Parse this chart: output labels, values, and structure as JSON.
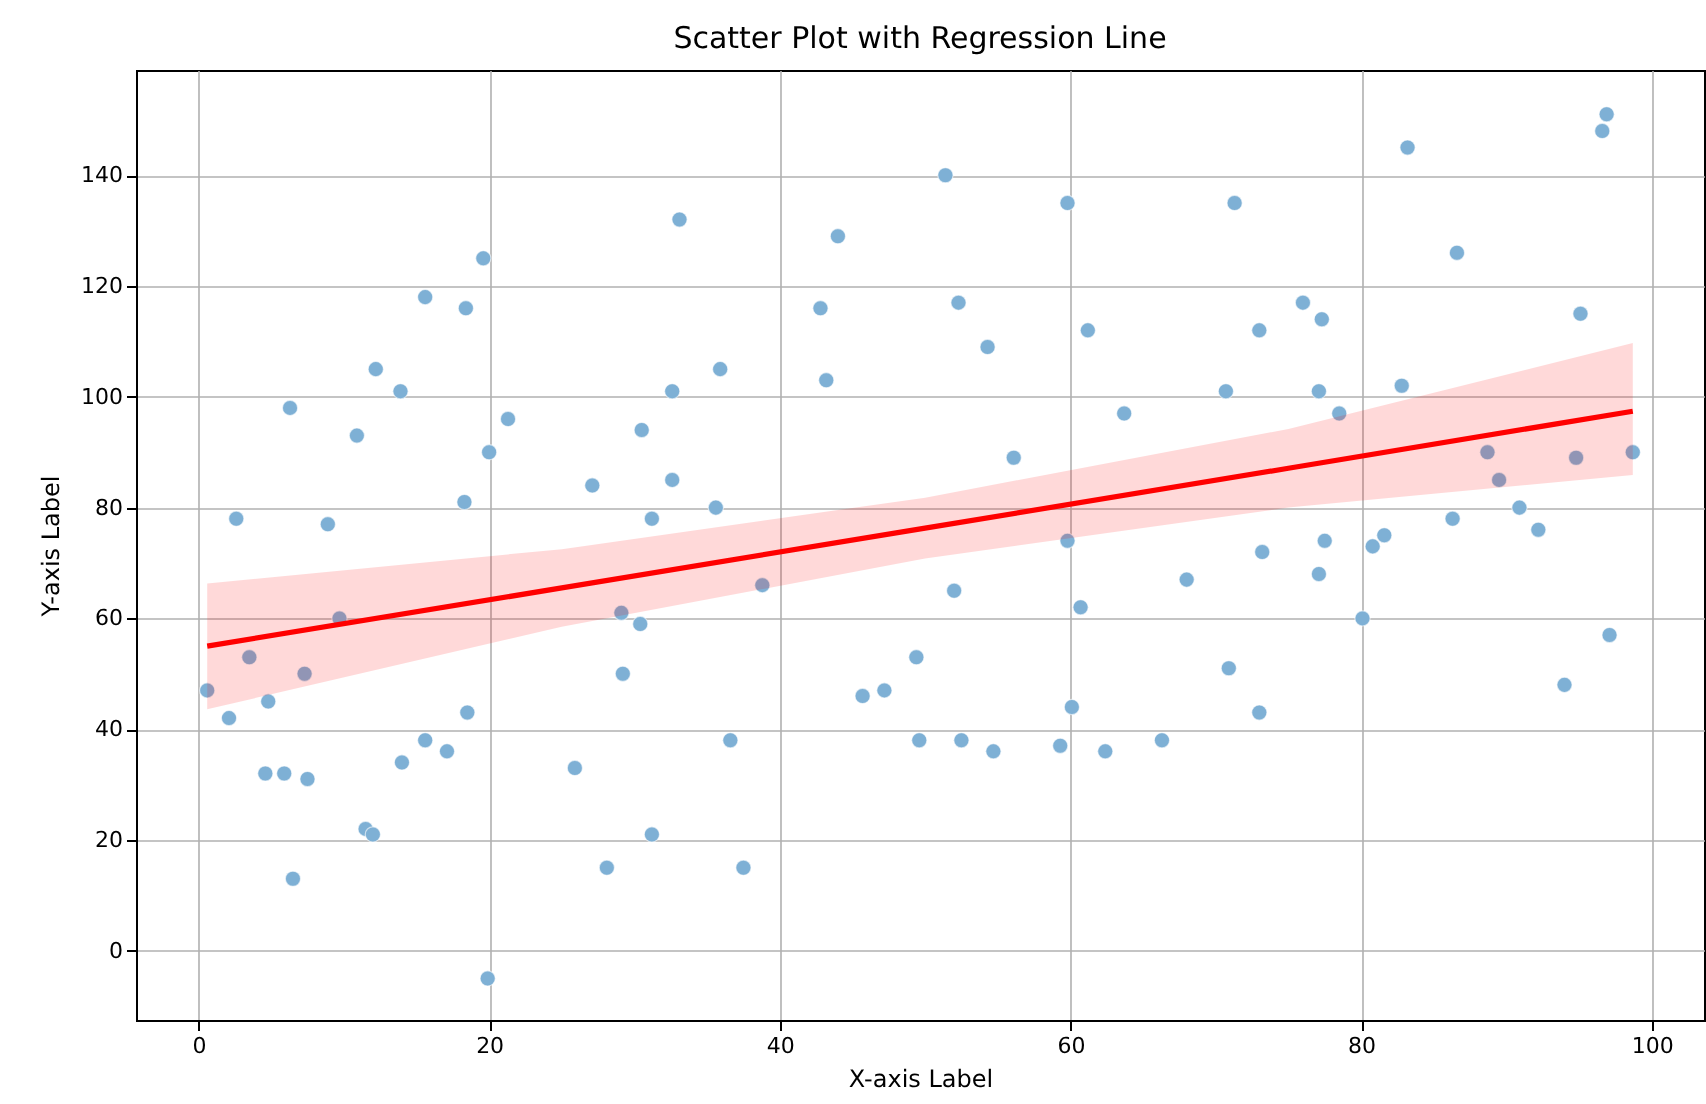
{
  "chart_data": {
    "type": "scatter",
    "title": "Scatter Plot with Regression Line",
    "xlabel": "X-axis Label",
    "ylabel": "Y-axis Label",
    "xlim": [
      -4.3,
      103.6
    ],
    "ylim": [
      -12.5,
      159
    ],
    "xticks": [
      0,
      20,
      40,
      60,
      80,
      100
    ],
    "yticks": [
      0,
      20,
      40,
      60,
      80,
      100,
      120,
      140
    ],
    "grid": true,
    "series": [
      {
        "color": "#7eb0d5",
        "marker": "circle",
        "x": [
          0.6,
          2.1,
          2.6,
          3.5,
          4.8,
          4.6,
          5.9,
          6.3,
          6.5,
          7.3,
          7.5,
          8.9,
          9.7,
          10.9,
          11.5,
          12.0,
          12.2,
          13.9,
          14.0,
          15.6,
          15.6,
          17.1,
          18.4,
          18.3,
          18.5,
          19.6,
          20.0,
          19.9,
          21.3,
          25.9,
          27.1,
          28.1,
          29.1,
          29.2,
          30.5,
          30.4,
          31.2,
          31.2,
          32.6,
          32.6,
          33.1,
          35.6,
          35.9,
          36.6,
          37.5,
          38.8,
          42.8,
          43.2,
          44.0,
          45.7,
          47.2,
          49.4,
          49.6,
          51.4,
          52.0,
          52.3,
          52.5,
          54.3,
          54.7,
          56.1,
          59.3,
          59.8,
          59.8,
          60.1,
          60.7,
          61.2,
          62.4,
          63.7,
          66.3,
          68.0,
          70.7,
          70.9,
          71.3,
          73.0,
          73.2,
          73.0,
          76.0,
          77.3,
          77.1,
          77.1,
          77.5,
          78.5,
          80.1,
          80.8,
          81.6,
          82.8,
          83.2,
          86.3,
          86.6,
          88.7,
          89.5,
          90.9,
          92.2,
          94.0,
          94.8,
          95.1,
          96.6,
          96.9,
          97.1,
          98.7
        ],
        "values": [
          47,
          42,
          78,
          53,
          45,
          32,
          32,
          98,
          13,
          50,
          31,
          77,
          60,
          93,
          22,
          21,
          105,
          101,
          34,
          118,
          38,
          36,
          116,
          81,
          43,
          125,
          90,
          -5,
          96,
          33,
          84,
          15,
          61,
          50,
          94,
          59,
          78,
          21,
          85,
          101,
          132,
          80,
          105,
          38,
          15,
          66,
          116,
          103,
          129,
          46,
          47,
          53,
          38,
          140,
          65,
          117,
          38,
          109,
          36,
          89,
          37,
          135,
          74,
          44,
          62,
          112,
          36,
          97,
          38,
          67,
          101,
          51,
          135,
          112,
          72,
          43,
          117,
          114,
          101,
          68,
          74,
          97,
          60,
          73,
          75,
          102,
          145,
          78,
          126,
          90,
          85,
          80,
          76,
          48,
          89,
          115,
          148,
          151,
          57,
          90
        ]
      },
      {
        "type": "line",
        "color": "#ff0000",
        "x": [
          0.6,
          25,
          50,
          75,
          98.7
        ],
        "values": [
          55.0,
          65.5,
          76.3,
          87.1,
          97.4
        ],
        "lower": [
          43.6,
          58.5,
          70.8,
          80.0,
          85.9
        ],
        "upper": [
          66.3,
          72.5,
          81.8,
          94.2,
          109.7
        ]
      }
    ]
  }
}
